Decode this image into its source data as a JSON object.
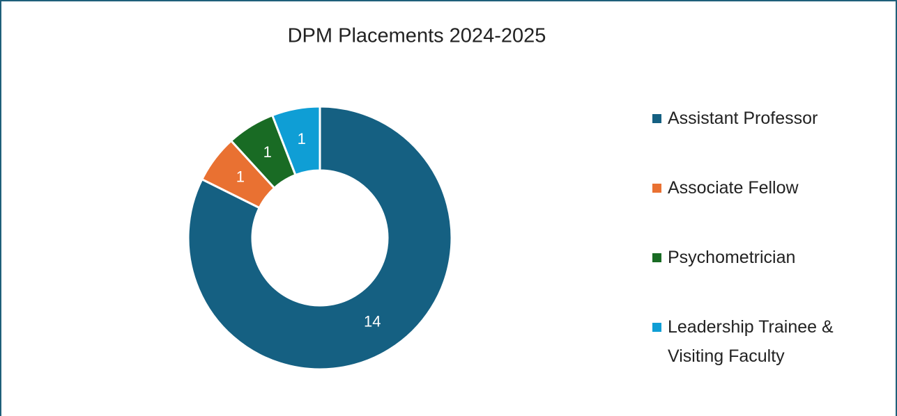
{
  "chart_data": {
    "type": "donut",
    "title": "DPM Placements 2024-2025",
    "categories": [
      "Assistant Professor",
      "Associate Fellow",
      "Psychometrician",
      "Leadership Trainee & Visiting Faculty"
    ],
    "values": [
      14,
      1,
      1,
      1
    ],
    "colors": [
      "#156082",
      "#e97132",
      "#196b24",
      "#0f9ed5"
    ],
    "legend": "right"
  }
}
